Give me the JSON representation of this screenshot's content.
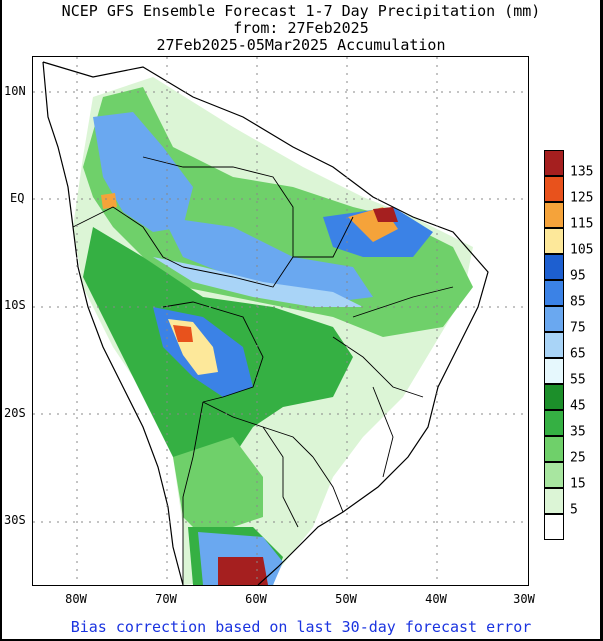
{
  "title": {
    "line1": "NCEP GFS Ensemble Forecast 1-7 Day Precipitation (mm)",
    "line2": "from: 27Feb2025",
    "line3": "27Feb2025-05Mar2025 Accumulation"
  },
  "map": {
    "y_axis_labels": [
      "10N",
      "EQ",
      "10S",
      "20S",
      "30S"
    ],
    "x_axis_labels": [
      "80W",
      "70W",
      "60W",
      "50W",
      "40W",
      "30W"
    ],
    "grid": true
  },
  "legend": {
    "levels": [
      {
        "label": "135",
        "color": "#a51f1f"
      },
      {
        "label": "125",
        "color": "#e8521c"
      },
      {
        "label": "115",
        "color": "#f5a33a"
      },
      {
        "label": "105",
        "color": "#fde89a"
      },
      {
        "label": "95",
        "color": "#1d5fd0"
      },
      {
        "label": "85",
        "color": "#3b82e6"
      },
      {
        "label": "75",
        "color": "#6aa8f0"
      },
      {
        "label": "65",
        "color": "#a9d4f7"
      },
      {
        "label": "55",
        "color": "#e6f8fd"
      },
      {
        "label": "45",
        "color": "#1c8f2a"
      },
      {
        "label": "35",
        "color": "#35b043"
      },
      {
        "label": "25",
        "color": "#6fd06a"
      },
      {
        "label": "15",
        "color": "#a8e6a0"
      },
      {
        "label": "5",
        "color": "#dcf5d6"
      },
      {
        "label": "",
        "color": "#ffffff"
      }
    ]
  },
  "footer": "Bias correction based on last 30-day forecast error"
}
